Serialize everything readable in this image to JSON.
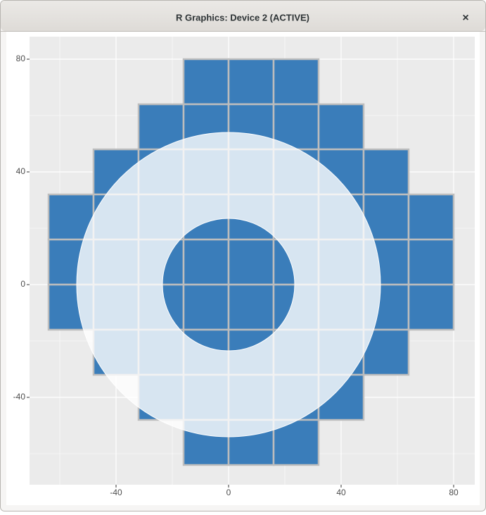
{
  "window": {
    "title": "R Graphics: Device 2 (ACTIVE)",
    "close": "×"
  },
  "chart_data": {
    "type": "tile",
    "tile_size": 16,
    "fill": "#3a7dba",
    "border": "#bdbdbd",
    "rows": [
      {
        "y": 72,
        "xmin": -8,
        "xmax": 24
      },
      {
        "y": 56,
        "xmin": -24,
        "xmax": 40
      },
      {
        "y": 40,
        "xmin": -40,
        "xmax": 56
      },
      {
        "y": 24,
        "xmin": -56,
        "xmax": 72
      },
      {
        "y": 8,
        "xmin": -56,
        "xmax": 72
      },
      {
        "y": -8,
        "xmin": -56,
        "xmax": 72
      },
      {
        "y": -24,
        "xmin": -40,
        "xmax": 56
      },
      {
        "y": -40,
        "xmin": -24,
        "xmax": 40
      },
      {
        "y": -56,
        "xmin": -8,
        "xmax": 24
      }
    ],
    "annulus": {
      "x": 0,
      "y": 0,
      "r_outer": 54,
      "r_inner": 23.5,
      "color": "#ffffff",
      "opacity": 0.8
    },
    "xlim": [
      -70.75,
      87.5
    ],
    "ylim": [
      -71,
      88
    ],
    "xticks": [
      -40,
      0,
      40,
      80
    ],
    "yticks": [
      -40,
      0,
      40,
      80
    ],
    "xminor": [
      -60,
      -20,
      20,
      60
    ],
    "yminor": [
      -60,
      -20,
      20,
      60
    ],
    "grid": true
  }
}
